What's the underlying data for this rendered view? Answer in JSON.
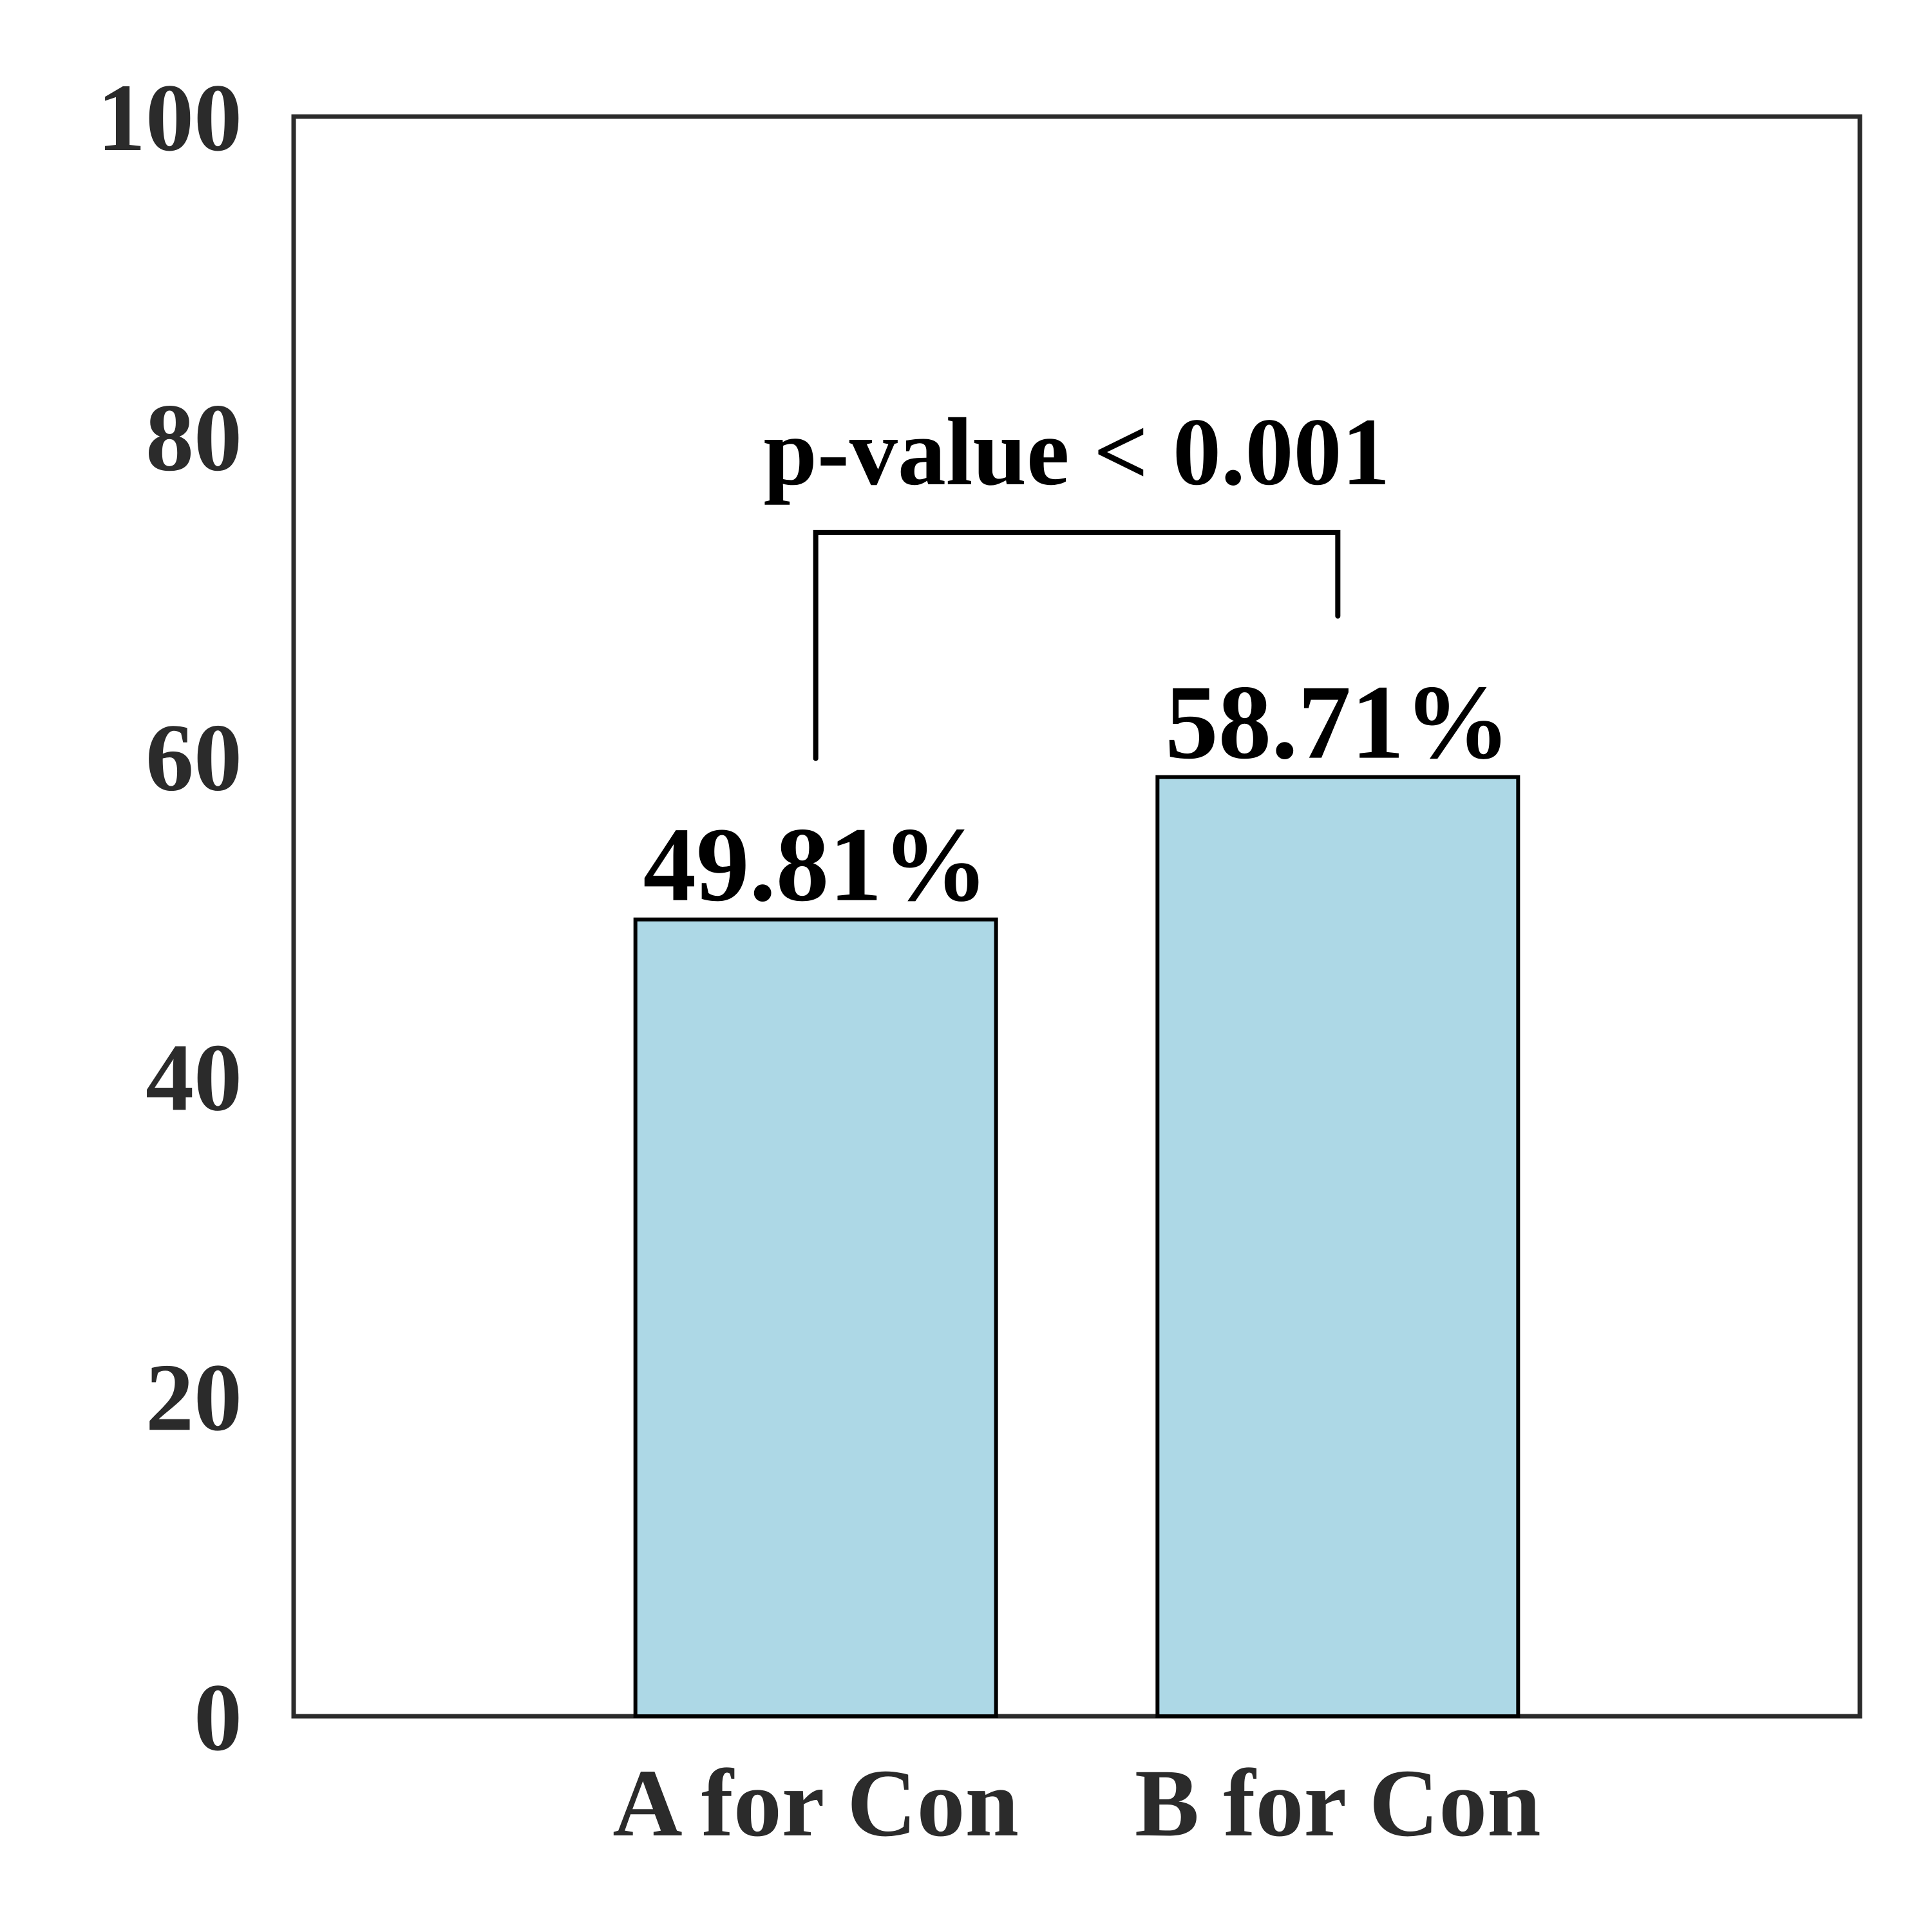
{
  "chart_data": {
    "type": "bar",
    "categories": [
      "A for Con",
      "B for Con"
    ],
    "values": [
      49.81,
      58.71
    ],
    "data_labels": [
      "49.81%",
      "58.71%"
    ],
    "title": "",
    "xlabel": "",
    "ylabel": "",
    "ylim": [
      0,
      100
    ],
    "yticks": [
      0,
      20,
      40,
      60,
      80,
      100
    ],
    "ytick_labels": [
      "0",
      "20",
      "40",
      "60",
      "80",
      "100"
    ],
    "grid": false,
    "legend": "none",
    "bar_color": "#add8e6",
    "bar_edge_color": "#000000",
    "axis_color": "#2b2b2b",
    "annotation": {
      "text": "p-value < 0.001",
      "between": [
        "A for Con",
        "B for Con"
      ],
      "bracket_top": 74
    }
  }
}
